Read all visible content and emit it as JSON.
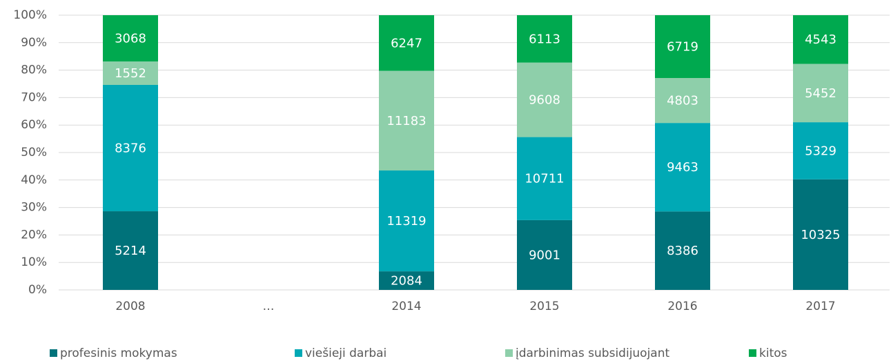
{
  "chart_data": {
    "type": "bar",
    "stacked": "percent",
    "categories": [
      "2008",
      "…",
      "2014",
      "2015",
      "2016",
      "2017"
    ],
    "series": [
      {
        "name": "profesinis mokymas",
        "color": "#00727a",
        "values": [
          5214,
          null,
          2084,
          9001,
          8386,
          10325
        ]
      },
      {
        "name": "viešieji darbai",
        "color": "#00a9b5",
        "values": [
          8376,
          null,
          11319,
          10711,
          9463,
          5329
        ]
      },
      {
        "name": "įdarbinimas subsidijuojant",
        "color": "#8ecfaa",
        "values": [
          1552,
          null,
          11183,
          9608,
          4803,
          5452
        ]
      },
      {
        "name": "kitos",
        "color": "#00a94f",
        "values": [
          3068,
          null,
          6247,
          6113,
          6719,
          4543
        ]
      }
    ],
    "ylim": [
      0,
      100
    ],
    "yticks": [
      {
        "value": 0,
        "label": "0%"
      },
      {
        "value": 10,
        "label": "10%"
      },
      {
        "value": 20,
        "label": "20%"
      },
      {
        "value": 30,
        "label": "30%"
      },
      {
        "value": 40,
        "label": "40%"
      },
      {
        "value": 50,
        "label": "50%"
      },
      {
        "value": 60,
        "label": "60%"
      },
      {
        "value": 70,
        "label": "70%"
      },
      {
        "value": 80,
        "label": "80%"
      },
      {
        "value": 90,
        "label": "90%"
      },
      {
        "value": 100,
        "label": "100%"
      }
    ],
    "grid": true,
    "legend": "bottom"
  }
}
